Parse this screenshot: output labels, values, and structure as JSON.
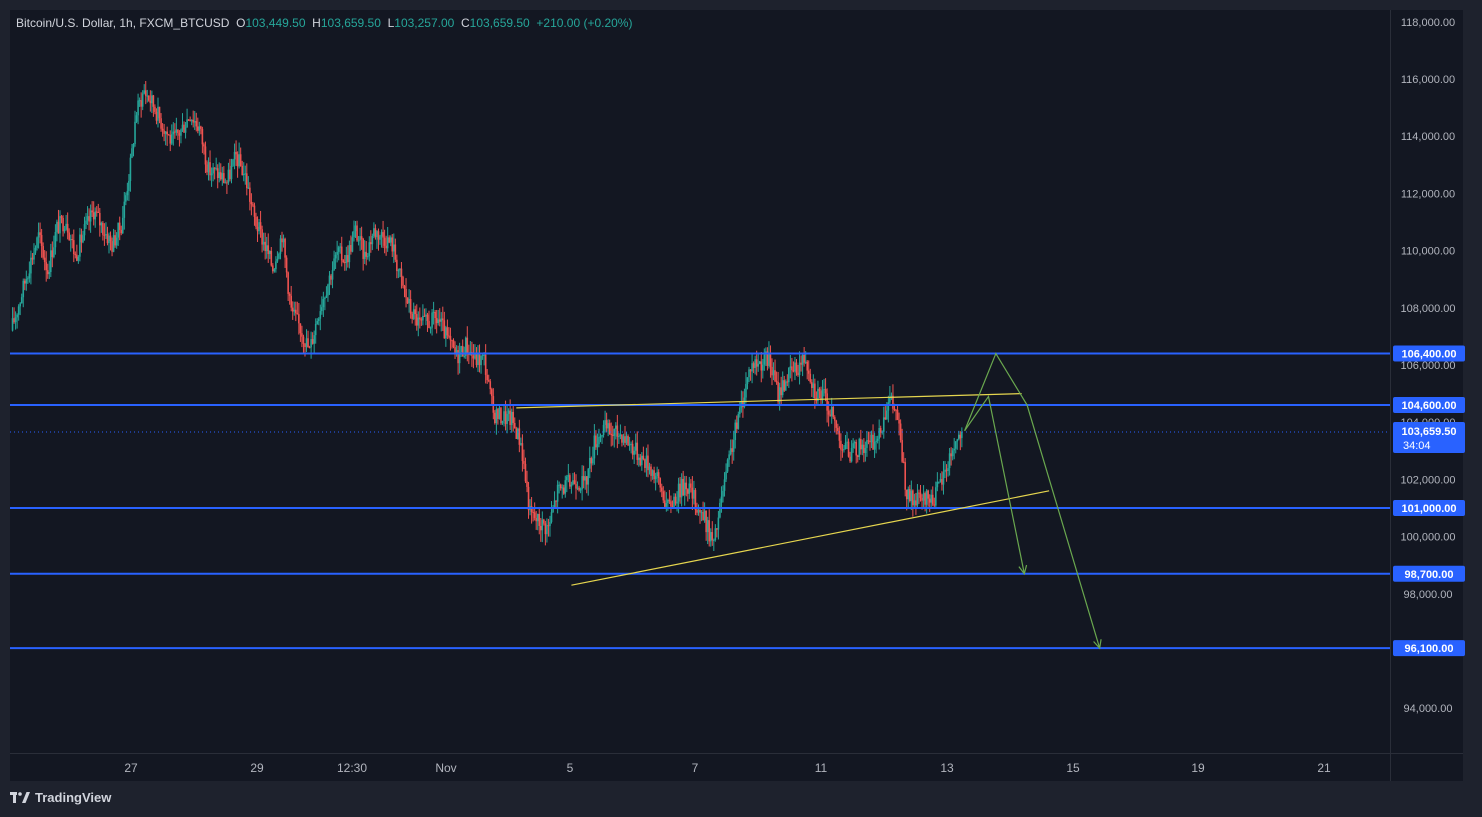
{
  "header": {
    "symbol_name": "Bitcoin/U.S. Dollar",
    "interval": "1h",
    "exchange_symbol": "FXCM_BTCUSD",
    "ohlc": {
      "open_label": "O",
      "open": "103,449.50",
      "high_label": "H",
      "high": "103,659.50",
      "low_label": "L",
      "low": "103,257.00",
      "close_label": "C",
      "close": "103,659.50",
      "change": "+210.00 (+0.20%)"
    }
  },
  "footer": {
    "brand": "TradingView",
    "logo_icon": "tradingview-logo-icon"
  },
  "colors": {
    "background": "#131722",
    "frame": "#1e222d",
    "up": "#26a69a",
    "down": "#ef5350",
    "level_line": "#2962ff",
    "trend_line": "#e6d64f",
    "projection": "#6aa84f",
    "axis_text": "#b2b5be"
  },
  "chart_data": {
    "type": "candlestick",
    "ylim": [
      93000,
      118500
    ],
    "y_ticks": [
      {
        "value": 118000,
        "label": "118,000.00"
      },
      {
        "value": 116000,
        "label": "116,000.00"
      },
      {
        "value": 114000,
        "label": "114,000.00"
      },
      {
        "value": 112000,
        "label": "112,000.00"
      },
      {
        "value": 110000,
        "label": "110,000.00"
      },
      {
        "value": 108000,
        "label": "108,000.00"
      },
      {
        "value": 106000,
        "label": "106,000.00"
      },
      {
        "value": 104000,
        "label": "104,000.00"
      },
      {
        "value": 102000,
        "label": "102,000.00"
      },
      {
        "value": 100000,
        "label": "100,000.00"
      },
      {
        "value": 98000,
        "label": "98,000.00"
      },
      {
        "value": 94000,
        "label": "94,000.00"
      }
    ],
    "x_ticks": [
      "27",
      "29",
      "12:30",
      "Nov",
      "5",
      "7",
      "11",
      "13",
      "15",
      "19",
      "21"
    ],
    "price_series": [
      [
        0,
        107200
      ],
      [
        1,
        108300
      ],
      [
        2,
        109500
      ],
      [
        3,
        110500
      ],
      [
        4,
        109300
      ],
      [
        5,
        110800
      ],
      [
        6,
        111100
      ],
      [
        7,
        109800
      ],
      [
        8,
        110700
      ],
      [
        9,
        111400
      ],
      [
        10,
        110800
      ],
      [
        11,
        110200
      ],
      [
        12,
        110900
      ],
      [
        13.1,
        113200
      ],
      [
        13.6,
        114800
      ],
      [
        14.5,
        115600
      ],
      [
        15.5,
        115100
      ],
      [
        16.5,
        114400
      ],
      [
        17.5,
        113800
      ],
      [
        18.5,
        114200
      ],
      [
        19.5,
        114800
      ],
      [
        20.5,
        114300
      ],
      [
        21.5,
        112800
      ],
      [
        22.5,
        112700
      ],
      [
        23.5,
        112400
      ],
      [
        24.5,
        113300
      ],
      [
        25.5,
        112600
      ],
      [
        26.5,
        111100
      ],
      [
        27.5,
        110300
      ],
      [
        28.5,
        109400
      ],
      [
        29.5,
        110600
      ],
      [
        30.5,
        107900
      ],
      [
        31.5,
        107300
      ],
      [
        32.5,
        106500
      ],
      [
        33.5,
        107900
      ],
      [
        34.5,
        108900
      ],
      [
        35.5,
        109900
      ],
      [
        36.5,
        109700
      ],
      [
        37.5,
        110700
      ],
      [
        38.5,
        109800
      ],
      [
        39.5,
        110700
      ],
      [
        40.5,
        110500
      ],
      [
        41.5,
        110200
      ],
      [
        42.5,
        108900
      ],
      [
        43.5,
        107900
      ],
      [
        44.5,
        107400
      ],
      [
        45.5,
        107500
      ],
      [
        46.5,
        107600
      ],
      [
        47.5,
        106900
      ],
      [
        48.5,
        106300
      ],
      [
        49.5,
        106700
      ],
      [
        50.5,
        106200
      ],
      [
        51.5,
        106200
      ],
      [
        52.5,
        104300
      ],
      [
        53.5,
        104200
      ],
      [
        54.5,
        104100
      ],
      [
        55.5,
        103300
      ],
      [
        56.5,
        100800
      ],
      [
        57.5,
        100500
      ],
      [
        58.5,
        100300
      ],
      [
        59.5,
        101600
      ],
      [
        60.5,
        101800
      ],
      [
        61.5,
        102000
      ],
      [
        62.5,
        101800
      ],
      [
        63.5,
        103300
      ],
      [
        64.5,
        103800
      ],
      [
        65.5,
        103600
      ],
      [
        66.5,
        103600
      ],
      [
        67.5,
        103200
      ],
      [
        68.5,
        102800
      ],
      [
        69.5,
        102500
      ],
      [
        70.5,
        101900
      ],
      [
        71.5,
        101000
      ],
      [
        72.5,
        101500
      ],
      [
        73.5,
        101900
      ],
      [
        74.5,
        101200
      ],
      [
        75.5,
        100600
      ],
      [
        76.5,
        99700
      ],
      [
        77.5,
        101600
      ],
      [
        78.5,
        103200
      ],
      [
        79.5,
        104600
      ],
      [
        80.5,
        106000
      ],
      [
        81.5,
        106100
      ],
      [
        82.5,
        106200
      ],
      [
        83.5,
        105000
      ],
      [
        84.5,
        105600
      ],
      [
        85.5,
        105900
      ],
      [
        86.5,
        106300
      ],
      [
        87.5,
        105100
      ],
      [
        88.5,
        104900
      ],
      [
        89.5,
        104100
      ],
      [
        90.5,
        103200
      ],
      [
        91.5,
        102900
      ],
      [
        92.5,
        103200
      ],
      [
        93.5,
        103200
      ],
      [
        94.5,
        103500
      ],
      [
        95.5,
        104900
      ],
      [
        96.5,
        104200
      ],
      [
        97.5,
        101400
      ],
      [
        98.5,
        101200
      ],
      [
        99.5,
        101300
      ],
      [
        100.5,
        101400
      ],
      [
        101.5,
        102100
      ],
      [
        102.5,
        103100
      ],
      [
        103.5,
        103659.5
      ]
    ],
    "horizontal_levels": [
      {
        "value": 106400,
        "label": "106,400.00"
      },
      {
        "value": 104600,
        "label": "104,600.00"
      },
      {
        "value": 101000,
        "label": "101,000.00"
      },
      {
        "value": 98700,
        "label": "98,700.00"
      },
      {
        "value": 96100,
        "label": "96,100.00"
      }
    ],
    "current_price": {
      "value": 103659.5,
      "label": "103,659.50",
      "countdown": "34:04"
    },
    "trend_lines": [
      {
        "from": [
          55,
          104500
        ],
        "to": [
          110,
          105000
        ]
      },
      {
        "from": [
          61,
          98300
        ],
        "to": [
          113,
          101600
        ]
      }
    ],
    "projections": [
      {
        "points": [
          [
            103.8,
            103700
          ],
          [
            107.2,
            106400
          ],
          [
            110.6,
            104600
          ],
          [
            118.5,
            96100
          ]
        ]
      },
      {
        "points": [
          [
            103.8,
            103700
          ],
          [
            106.4,
            104900
          ],
          [
            110.3,
            98700
          ]
        ]
      }
    ]
  }
}
